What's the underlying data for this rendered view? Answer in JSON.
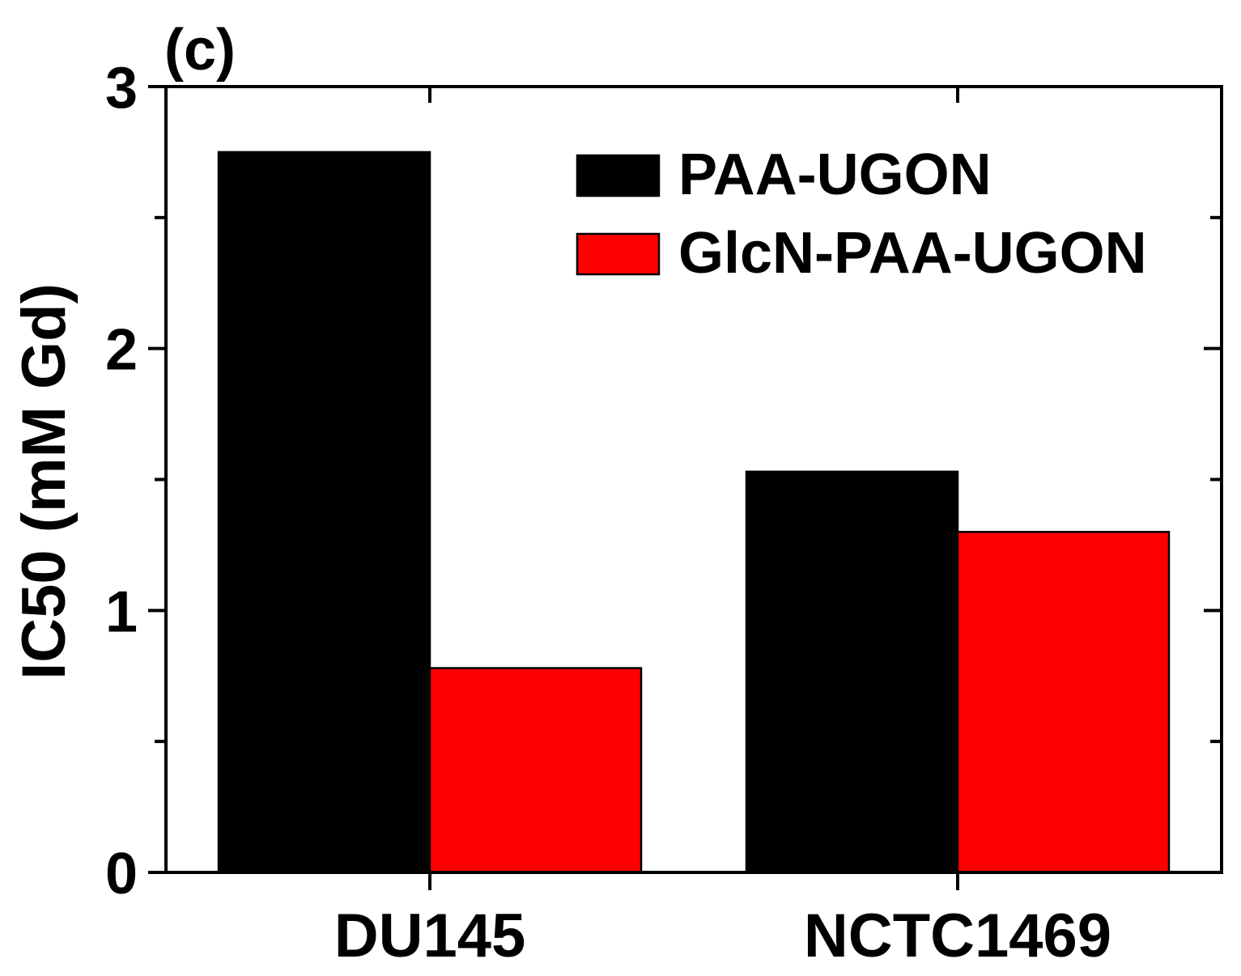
{
  "panel_label": "(c)",
  "chart_data": {
    "type": "bar",
    "categories": [
      "DU145",
      "NCTC1469"
    ],
    "series": [
      {
        "name": "PAA-UGON",
        "color": "#000000",
        "values": [
          2.75,
          1.53
        ]
      },
      {
        "name": "GlcN-PAA-UGON",
        "color": "#ff0000",
        "values": [
          0.78,
          1.3
        ]
      }
    ],
    "ylabel": "IC50 (mM Gd)",
    "xlabel": "",
    "ylim": [
      0,
      3
    ],
    "yticks": [
      0,
      1,
      2,
      3
    ],
    "y_minor_step": 0.5,
    "grid": false,
    "legend_position": "top-right"
  }
}
